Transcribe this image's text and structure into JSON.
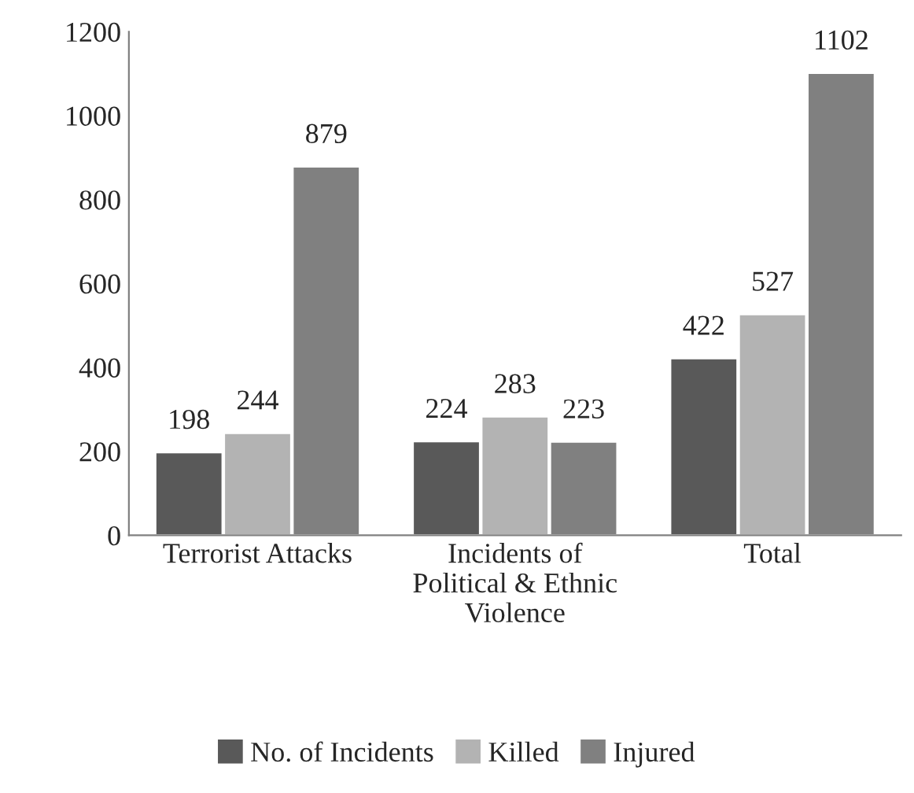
{
  "chart_data": {
    "type": "bar",
    "categories": [
      "Terrorist Attacks",
      "Incidents of\nPolitical & Ethnic\nViolence",
      "Total"
    ],
    "series": [
      {
        "name": "No. of Incidents",
        "color": "#595959",
        "values": [
          198,
          224,
          422
        ]
      },
      {
        "name": "Killed",
        "color": "#b3b3b3",
        "values": [
          244,
          283,
          527
        ]
      },
      {
        "name": "Injured",
        "color": "#808080",
        "values": [
          879,
          223,
          1102
        ]
      }
    ],
    "ylim": [
      0,
      1200
    ],
    "yticks": [
      0,
      200,
      400,
      600,
      800,
      1000,
      1200
    ],
    "data_labels": true,
    "legend": "bottom",
    "grid": false
  }
}
